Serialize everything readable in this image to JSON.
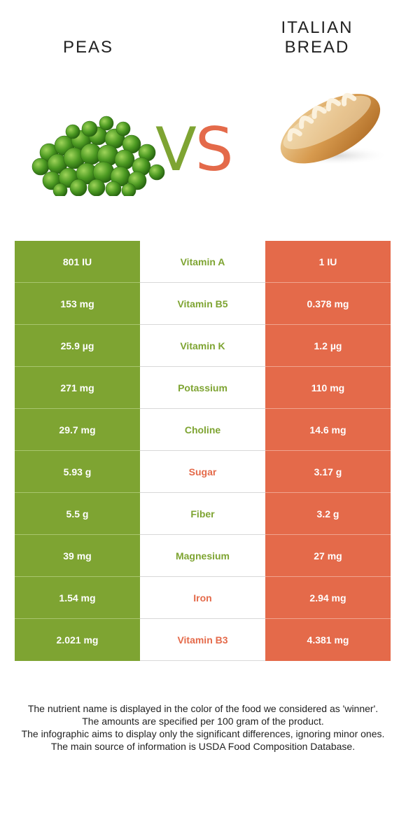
{
  "header": {
    "left_food": "PEAS",
    "right_food": "ITALIAN BREAD",
    "vs_v": "V",
    "vs_s": "S"
  },
  "colors": {
    "left_winner": "#7ea432",
    "right_winner": "#e46a4a"
  },
  "images": {
    "left": "peas-image",
    "right": "italian-bread-image"
  },
  "rows": [
    {
      "left": "801 IU",
      "nutrient": "Vitamin A",
      "right": "1 IU",
      "winner": "left"
    },
    {
      "left": "153 mg",
      "nutrient": "Vitamin B5",
      "right": "0.378 mg",
      "winner": "left"
    },
    {
      "left": "25.9 µg",
      "nutrient": "Vitamin K",
      "right": "1.2 µg",
      "winner": "left"
    },
    {
      "left": "271 mg",
      "nutrient": "Potassium",
      "right": "110 mg",
      "winner": "left"
    },
    {
      "left": "29.7 mg",
      "nutrient": "Choline",
      "right": "14.6 mg",
      "winner": "left"
    },
    {
      "left": "5.93 g",
      "nutrient": "Sugar",
      "right": "3.17 g",
      "winner": "right"
    },
    {
      "left": "5.5 g",
      "nutrient": "Fiber",
      "right": "3.2 g",
      "winner": "left"
    },
    {
      "left": "39 mg",
      "nutrient": "Magnesium",
      "right": "27 mg",
      "winner": "left"
    },
    {
      "left": "1.54 mg",
      "nutrient": "Iron",
      "right": "2.94 mg",
      "winner": "right"
    },
    {
      "left": "2.021 mg",
      "nutrient": "Vitamin B3",
      "right": "4.381 mg",
      "winner": "right"
    }
  ],
  "notes": {
    "line1": "The nutrient name is displayed in the color of the food we considered as 'winner'.",
    "line2": "The amounts are specified per 100 gram of the product.",
    "line3": "The infographic aims to display only the significant differences, ignoring minor ones.",
    "line4": "The main source of information is USDA Food Composition Database."
  }
}
